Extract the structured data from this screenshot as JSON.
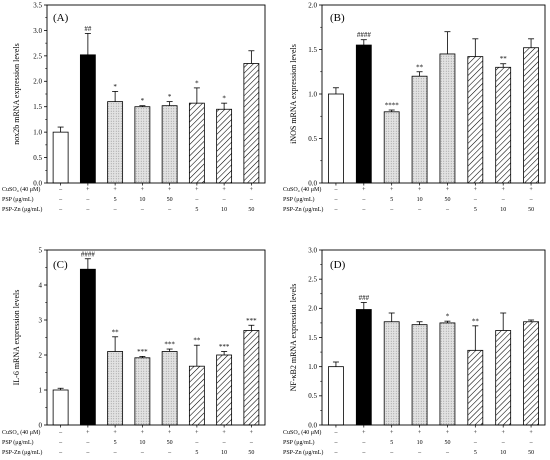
{
  "colors": {
    "frame": "#000000",
    "control_bar": "#ffffff",
    "cuso4_bar": "#000000",
    "psp_bar": "#dcdcdc",
    "psp_zn_hatch": "#000000"
  },
  "chart_data": [
    {
      "type": "bar",
      "panel_label": "(A)",
      "ylabel": "nox2b mRNA expression levels",
      "xlabel": "",
      "ylim": [
        0,
        3.5
      ],
      "yticks": [
        "0.0",
        "0.5",
        "1.0",
        "1.5",
        "2.0",
        "2.5",
        "3.0",
        "3.5"
      ],
      "values": [
        1.0,
        2.52,
        1.6,
        1.5,
        1.52,
        1.57,
        1.45,
        2.35
      ],
      "errors": [
        0.1,
        0.42,
        0.2,
        0.02,
        0.08,
        0.3,
        0.12,
        0.25
      ],
      "significance": [
        "",
        "##",
        "*",
        "*",
        "*",
        "*",
        "*",
        ""
      ],
      "bar_styles": [
        "white",
        "black",
        "dotted",
        "dotted",
        "dotted",
        "hatched",
        "hatched",
        "hatched"
      ],
      "treatment_table": [
        {
          "label": "CuSO₄ (40 μM)",
          "cells": [
            "–",
            "+",
            "+",
            "+",
            "+",
            "+",
            "+",
            "+"
          ]
        },
        {
          "label": "PSP (μg/mL)",
          "cells": [
            "–",
            "–",
            "5",
            "10",
            "50",
            "–",
            "–",
            "–"
          ]
        },
        {
          "label": "PSP-Zn (μg/mL)",
          "cells": [
            "–",
            "–",
            "–",
            "–",
            "–",
            "5",
            "10",
            "50"
          ]
        }
      ]
    },
    {
      "type": "bar",
      "panel_label": "(B)",
      "ylabel": "iNOS mRNA expression levels",
      "xlabel": "",
      "ylim": [
        0,
        2.0
      ],
      "yticks": [
        "0.0",
        "0.5",
        "1.0",
        "1.5",
        "2.0"
      ],
      "values": [
        1.0,
        1.55,
        0.8,
        1.2,
        1.45,
        1.42,
        1.3,
        1.52
      ],
      "errors": [
        0.07,
        0.06,
        0.02,
        0.05,
        0.25,
        0.2,
        0.04,
        0.1
      ],
      "significance": [
        "",
        "####",
        "****",
        "**",
        "",
        "",
        "**",
        ""
      ],
      "bar_styles": [
        "white",
        "black",
        "dotted",
        "dotted",
        "dotted",
        "hatched",
        "hatched",
        "hatched"
      ],
      "treatment_table": [
        {
          "label": "CuSO₄ (40 μM)",
          "cells": [
            "–",
            "+",
            "+",
            "+",
            "+",
            "+",
            "+",
            "+"
          ]
        },
        {
          "label": "PSP (μg/mL)",
          "cells": [
            "–",
            "–",
            "5",
            "10",
            "50",
            "–",
            "–",
            "–"
          ]
        },
        {
          "label": "PSP-Zn (μg/mL)",
          "cells": [
            "–",
            "–",
            "–",
            "–",
            "–",
            "5",
            "10",
            "50"
          ]
        }
      ]
    },
    {
      "type": "bar",
      "panel_label": "(C)",
      "ylabel": "IL-6 mRNA expression levels",
      "xlabel": "",
      "ylim": [
        0,
        5
      ],
      "yticks": [
        "0",
        "1",
        "2",
        "3",
        "4",
        "5"
      ],
      "values": [
        1.0,
        4.45,
        2.1,
        1.92,
        2.1,
        1.68,
        2.0,
        2.7
      ],
      "errors": [
        0.05,
        0.3,
        0.42,
        0.04,
        0.07,
        0.6,
        0.1,
        0.15
      ],
      "significance": [
        "",
        "####",
        "**",
        "***",
        "***",
        "**",
        "***",
        "***"
      ],
      "bar_styles": [
        "white",
        "black",
        "dotted",
        "dotted",
        "dotted",
        "hatched",
        "hatched",
        "hatched"
      ],
      "treatment_table": [
        {
          "label": "CuSO₄ (40 μM)",
          "cells": [
            "–",
            "+",
            "+",
            "+",
            "+",
            "+",
            "+",
            "+"
          ]
        },
        {
          "label": "PSP (μg/mL)",
          "cells": [
            "–",
            "–",
            "5",
            "10",
            "50",
            "–",
            "–",
            "–"
          ]
        },
        {
          "label": "PSP-Zn (μg/mL)",
          "cells": [
            "–",
            "–",
            "–",
            "–",
            "–",
            "5",
            "10",
            "50"
          ]
        }
      ]
    },
    {
      "type": "bar",
      "panel_label": "(D)",
      "ylabel": "NF-κB2 mRNA expression levels",
      "xlabel": "",
      "ylim": [
        0,
        3.0
      ],
      "yticks": [
        "0.0",
        "0.5",
        "1.0",
        "1.5",
        "2.0",
        "2.5",
        "3.0"
      ],
      "values": [
        1.0,
        1.98,
        1.77,
        1.72,
        1.75,
        1.28,
        1.62,
        1.77
      ],
      "errors": [
        0.08,
        0.12,
        0.15,
        0.05,
        0.03,
        0.42,
        0.3,
        0.03
      ],
      "significance": [
        "",
        "###",
        "",
        "",
        "*",
        "**",
        "",
        ""
      ],
      "bar_styles": [
        "white",
        "black",
        "dotted",
        "dotted",
        "dotted",
        "hatched",
        "hatched",
        "hatched"
      ],
      "treatment_table": [
        {
          "label": "CuSO₄ (40 μM)",
          "cells": [
            "–",
            "+",
            "+",
            "+",
            "+",
            "+",
            "+",
            "+"
          ]
        },
        {
          "label": "PSP (μg/mL)",
          "cells": [
            "–",
            "–",
            "5",
            "10",
            "50",
            "–",
            "–",
            "–"
          ]
        },
        {
          "label": "PSP-Zn (μg/mL)",
          "cells": [
            "–",
            "–",
            "–",
            "–",
            "–",
            "5",
            "10",
            "50"
          ]
        }
      ]
    }
  ]
}
